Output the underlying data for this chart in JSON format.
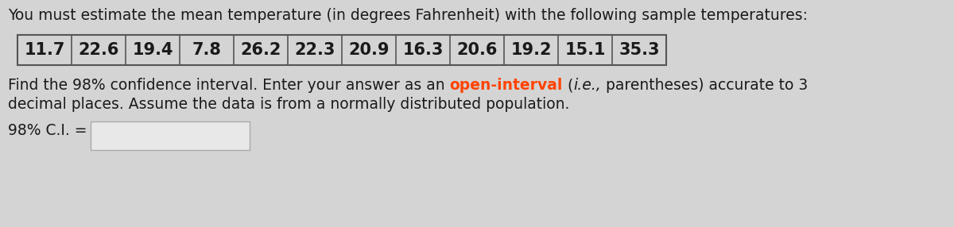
{
  "title_text": "You must estimate the mean temperature (in degrees Fahrenheit) with the following sample temperatures:",
  "temperatures": [
    "11.7",
    "22.6",
    "19.4",
    "7.8",
    "26.2",
    "22.3",
    "20.9",
    "16.3",
    "20.6",
    "19.2",
    "15.1",
    "35.3"
  ],
  "body_line1_part1": "Find the 98% confidence interval. Enter your answer as an ",
  "body_line1_highlight": "open-interval",
  "body_line1_part2": " (",
  "body_line1_italic": "i.e.,",
  "body_line1_part3": " parentheses) accurate to 3",
  "body_line2": "decimal places. Assume the data is from a normally distributed population.",
  "label_text": "98% C.I. =",
  "bg_color": "#d4d4d4",
  "text_color": "#1a1a1a",
  "highlight_color": "#ff4400",
  "table_bg": "#d4d4d4",
  "input_box_color": "#e8e8e8",
  "font_size_title": 13.5,
  "font_size_body": 13.5,
  "font_size_label": 13.5,
  "font_size_table": 15
}
